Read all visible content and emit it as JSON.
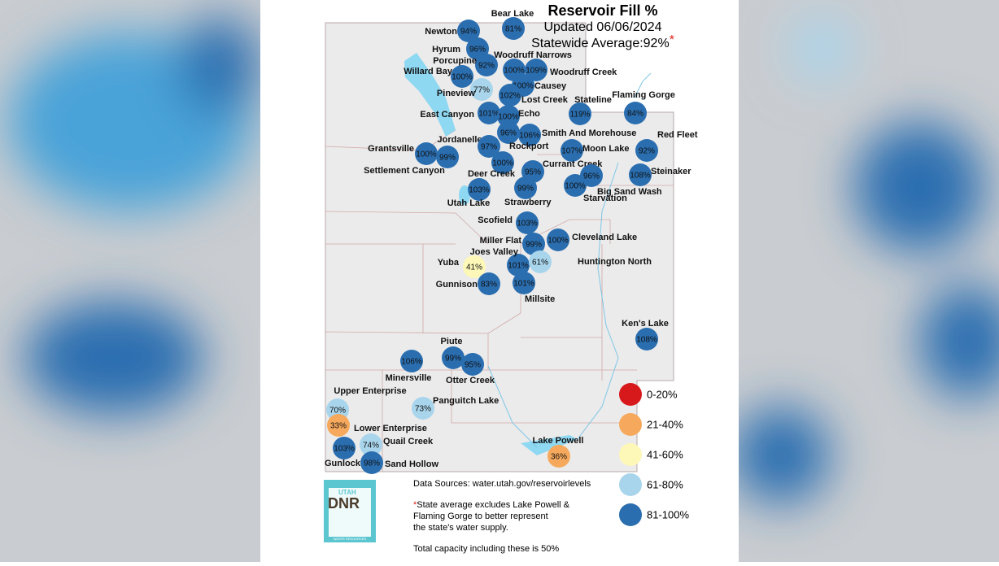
{
  "header": {
    "title": "Reservoir Fill %",
    "updated": "Updated 06/06/2024",
    "statewide_average": "Statewide Average:92%",
    "asterisk": "*"
  },
  "reservoirs": [
    {
      "name": "Bear Lake",
      "fill": "81%",
      "color": "#2a6eb0"
    },
    {
      "name": "Newton",
      "fill": "94%",
      "color": "#2a6eb0"
    },
    {
      "name": "Hyrum",
      "fill": "96%",
      "color": "#2a6eb0"
    },
    {
      "name": "Porcupine",
      "fill": "92%",
      "color": "#2a6eb0"
    },
    {
      "name": "Willard Bay",
      "fill": "100%",
      "color": "#2a6eb0"
    },
    {
      "name": "Woodruff Narrows",
      "fill": "100%",
      "color": "#2a6eb0"
    },
    {
      "name": "Woodruff Creek",
      "fill": "109%",
      "color": "#2a6eb0"
    },
    {
      "name": "Pineview",
      "fill": "77%",
      "color": "#a9d5ec"
    },
    {
      "name": "Causey",
      "fill": "100%",
      "color": "#2a6eb0"
    },
    {
      "name": "Lost Creek",
      "fill": "102%",
      "color": "#2a6eb0"
    },
    {
      "name": "East Canyon",
      "fill": "101%",
      "color": "#2a6eb0"
    },
    {
      "name": "Echo",
      "fill": "100%",
      "color": "#2a6eb0"
    },
    {
      "name": "Stateline",
      "fill": "119%",
      "color": "#2a6eb0"
    },
    {
      "name": "Flaming Gorge",
      "fill": "84%",
      "color": "#2a6eb0"
    },
    {
      "name": "Smith And Morehouse",
      "fill": "106%",
      "color": "#2a6eb0"
    },
    {
      "name": "Red Fleet",
      "fill": "92%",
      "color": "#2a6eb0"
    },
    {
      "name": "Jordanelle",
      "fill": "96%",
      "color": "#2a6eb0"
    },
    {
      "name": "Rockport",
      "fill": "97%",
      "color": "#2a6eb0"
    },
    {
      "name": "Moon Lake",
      "fill": "107%",
      "color": "#2a6eb0"
    },
    {
      "name": "Grantsville",
      "fill": "100%",
      "color": "#2a6eb0"
    },
    {
      "name": "Settlement Canyon",
      "fill": "99%",
      "color": "#2a6eb0"
    },
    {
      "name": "Deer Creek",
      "fill": "100%",
      "color": "#2a6eb0"
    },
    {
      "name": "Currant Creek",
      "fill": "95%",
      "color": "#2a6eb0"
    },
    {
      "name": "Big Sand Wash",
      "fill": "96%",
      "color": "#2a6eb0"
    },
    {
      "name": "Steinaker",
      "fill": "108%",
      "color": "#2a6eb0"
    },
    {
      "name": "Utah Lake",
      "fill": "103%",
      "color": "#2a6eb0"
    },
    {
      "name": "Strawberry",
      "fill": "99%",
      "color": "#2a6eb0"
    },
    {
      "name": "Starvation",
      "fill": "100%",
      "color": "#2a6eb0"
    },
    {
      "name": "Scofield",
      "fill": "103%",
      "color": "#2a6eb0"
    },
    {
      "name": "Miller Flat",
      "fill": "99%",
      "color": "#2a6eb0"
    },
    {
      "name": "Cleveland Lake",
      "fill": "100%",
      "color": "#2a6eb0"
    },
    {
      "name": "Joes Valley",
      "fill": "101%",
      "color": "#2a6eb0"
    },
    {
      "name": "Huntington North",
      "fill": "61%",
      "color": "#a9d5ec"
    },
    {
      "name": "Yuba",
      "fill": "41%",
      "color": "#fdf8b8"
    },
    {
      "name": "Gunnison",
      "fill": "83%",
      "color": "#2a6eb0"
    },
    {
      "name": "Millsite",
      "fill": "101%",
      "color": "#2a6eb0"
    },
    {
      "name": "Ken's Lake",
      "fill": "108%",
      "color": "#2a6eb0"
    },
    {
      "name": "Minersville",
      "fill": "106%",
      "color": "#2a6eb0"
    },
    {
      "name": "Piute",
      "fill": "99%",
      "color": "#2a6eb0"
    },
    {
      "name": "Otter Creek",
      "fill": "95%",
      "color": "#2a6eb0"
    },
    {
      "name": "Upper Enterprise",
      "fill": "70%",
      "color": "#a9d5ec"
    },
    {
      "name": "Panguitch Lake",
      "fill": "73%",
      "color": "#a9d5ec"
    },
    {
      "name": "Lower Enterprise",
      "fill": "33%",
      "color": "#f6a95c"
    },
    {
      "name": "Quail Creek",
      "fill": "74%",
      "color": "#a9d5ec"
    },
    {
      "name": "Gunlock",
      "fill": "103%",
      "color": "#2a6eb0"
    },
    {
      "name": "Sand Hollow",
      "fill": "98%",
      "color": "#2a6eb0"
    },
    {
      "name": "Lake Powell",
      "fill": "36%",
      "color": "#f6a95c"
    }
  ],
  "legend": [
    {
      "label": "0-20%",
      "color": "#d7191c"
    },
    {
      "label": "21-40%",
      "color": "#f6a95c"
    },
    {
      "label": "41-60%",
      "color": "#fdf8b8"
    },
    {
      "label": "61-80%",
      "color": "#a9d5ec"
    },
    {
      "label": "81-100%",
      "color": "#2a6eb0"
    }
  ],
  "logo": {
    "state": "UTAH",
    "agency": "DNR",
    "division": "WATER RESOURCES"
  },
  "notes": {
    "sources": "Data Sources: water.utah.gov/reservoirlevels",
    "asterisk": "*",
    "footnote": [
      "State average excludes Lake Powell &",
      "Flaming Gorge to better represent",
      "the state's water supply."
    ],
    "total": "Total capacity including these is 50%"
  }
}
